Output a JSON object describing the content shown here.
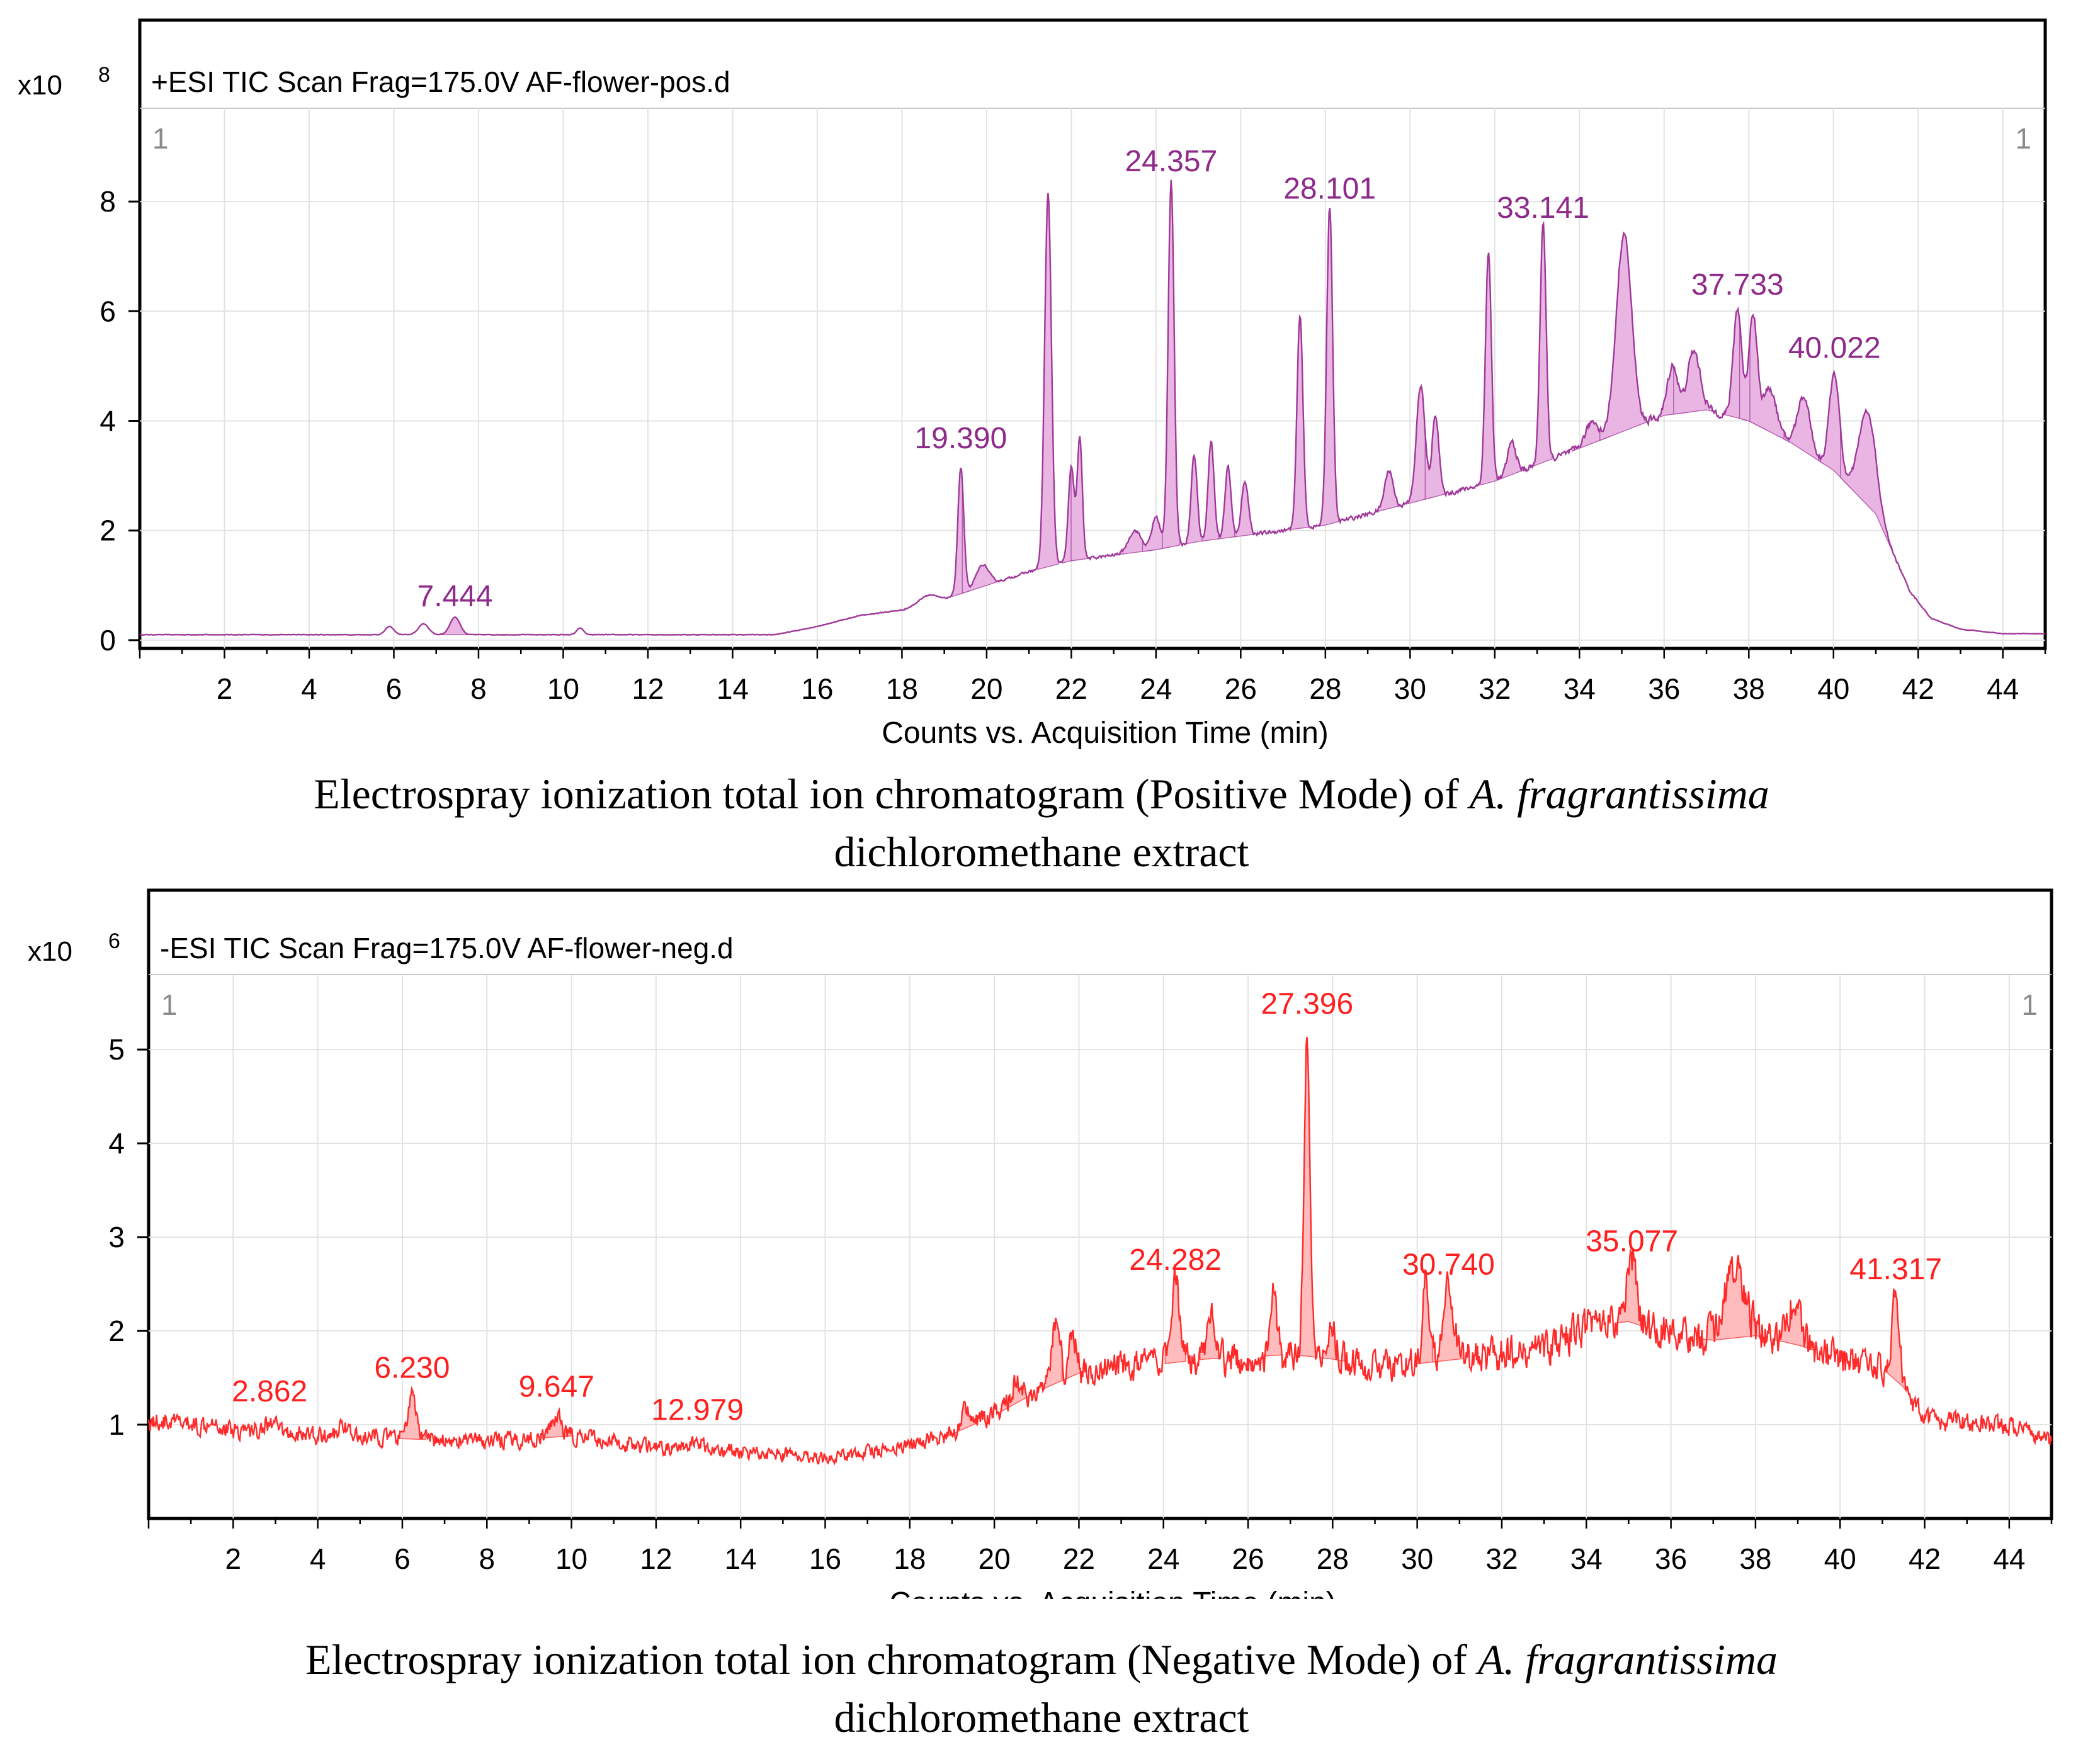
{
  "chart_data": [
    {
      "type": "line",
      "mode": "positive",
      "title": "+ESI TIC Scan Frag=175.0V AF-flower-pos.d",
      "exponent_base": "x10",
      "exponent_power": "8",
      "corner_label_left": "1",
      "corner_label_right": "1",
      "xlabel": "Counts vs. Acquisition Time (min)",
      "ylabel": "",
      "xlim": [
        0,
        45
      ],
      "ylim": [
        -0.15,
        9.7
      ],
      "x_ticks": [
        "2",
        "4",
        "6",
        "8",
        "10",
        "12",
        "14",
        "16",
        "18",
        "20",
        "22",
        "24",
        "26",
        "28",
        "30",
        "32",
        "34",
        "36",
        "38",
        "40",
        "42",
        "44"
      ],
      "y_ticks": [
        "0",
        "2",
        "4",
        "6",
        "8"
      ],
      "line_color": "#a0389a",
      "fill_color": "#e9b6e4",
      "label_color": "#8e2a8a",
      "baseline_points": [
        [
          0,
          0.1
        ],
        [
          15,
          0.1
        ],
        [
          16,
          0.25
        ],
        [
          17,
          0.45
        ],
        [
          18,
          0.55
        ],
        [
          19,
          0.75
        ],
        [
          20,
          1.0
        ],
        [
          21,
          1.25
        ],
        [
          22,
          1.45
        ],
        [
          23,
          1.55
        ],
        [
          24,
          1.65
        ],
        [
          25,
          1.8
        ],
        [
          26,
          1.9
        ],
        [
          27,
          2.0
        ],
        [
          28,
          2.1
        ],
        [
          29,
          2.3
        ],
        [
          30,
          2.5
        ],
        [
          31,
          2.7
        ],
        [
          32,
          2.9
        ],
        [
          33,
          3.2
        ],
        [
          34,
          3.5
        ],
        [
          35,
          3.8
        ],
        [
          36,
          4.1
        ],
        [
          37,
          4.2
        ],
        [
          38,
          4.0
        ],
        [
          39,
          3.6
        ],
        [
          40,
          3.1
        ],
        [
          41,
          2.3
        ],
        [
          41.8,
          0.9
        ],
        [
          42.3,
          0.4
        ],
        [
          43,
          0.2
        ],
        [
          44,
          0.12
        ],
        [
          45,
          0.12
        ]
      ],
      "peaks": [
        {
          "rt": 5.9,
          "height": 0.15,
          "width": 0.1
        },
        {
          "rt": 6.7,
          "height": 0.2,
          "width": 0.12
        },
        {
          "rt": 7.444,
          "height": 0.32,
          "width": 0.12
        },
        {
          "rt": 10.4,
          "height": 0.12,
          "width": 0.08
        },
        {
          "rt": 18.6,
          "height": 0.15,
          "width": 0.2
        },
        {
          "rt": 19.39,
          "height": 2.3,
          "width": 0.07
        },
        {
          "rt": 19.9,
          "height": 0.4,
          "width": 0.15
        },
        {
          "rt": 21.45,
          "height": 6.8,
          "width": 0.08
        },
        {
          "rt": 22.0,
          "height": 1.7,
          "width": 0.07
        },
        {
          "rt": 22.2,
          "height": 2.2,
          "width": 0.06
        },
        {
          "rt": 23.5,
          "height": 0.4,
          "width": 0.15
        },
        {
          "rt": 24.0,
          "height": 0.6,
          "width": 0.1
        },
        {
          "rt": 24.357,
          "height": 6.7,
          "width": 0.07
        },
        {
          "rt": 24.9,
          "height": 1.6,
          "width": 0.07
        },
        {
          "rt": 25.3,
          "height": 1.8,
          "width": 0.07
        },
        {
          "rt": 25.7,
          "height": 1.3,
          "width": 0.07
        },
        {
          "rt": 26.1,
          "height": 1.0,
          "width": 0.08
        },
        {
          "rt": 27.4,
          "height": 3.9,
          "width": 0.07
        },
        {
          "rt": 28.101,
          "height": 5.8,
          "width": 0.07
        },
        {
          "rt": 29.5,
          "height": 0.7,
          "width": 0.1
        },
        {
          "rt": 30.25,
          "height": 2.1,
          "width": 0.1
        },
        {
          "rt": 30.6,
          "height": 1.5,
          "width": 0.08
        },
        {
          "rt": 31.85,
          "height": 4.2,
          "width": 0.07
        },
        {
          "rt": 32.4,
          "height": 0.6,
          "width": 0.1
        },
        {
          "rt": 33.141,
          "height": 4.4,
          "width": 0.07
        },
        {
          "rt": 34.3,
          "height": 0.4,
          "width": 0.15
        },
        {
          "rt": 35.05,
          "height": 3.6,
          "width": 0.18
        },
        {
          "rt": 36.2,
          "height": 0.9,
          "width": 0.12
        },
        {
          "rt": 36.7,
          "height": 1.1,
          "width": 0.15
        },
        {
          "rt": 37.733,
          "height": 2.0,
          "width": 0.1
        },
        {
          "rt": 38.1,
          "height": 2.0,
          "width": 0.1
        },
        {
          "rt": 38.5,
          "height": 0.8,
          "width": 0.15
        },
        {
          "rt": 39.3,
          "height": 1.0,
          "width": 0.15
        },
        {
          "rt": 40.022,
          "height": 1.8,
          "width": 0.12
        },
        {
          "rt": 40.8,
          "height": 1.7,
          "width": 0.2
        }
      ],
      "peak_labels": [
        {
          "text": "7.444",
          "x": 7.444,
          "y": 0.62
        },
        {
          "text": "19.390",
          "x": 19.39,
          "y": 3.5
        },
        {
          "text": "24.357",
          "x": 24.357,
          "y": 8.55
        },
        {
          "text": "28.101",
          "x": 28.101,
          "y": 8.05
        },
        {
          "text": "33.141",
          "x": 33.141,
          "y": 7.7
        },
        {
          "text": "37.733",
          "x": 37.733,
          "y": 6.3
        },
        {
          "text": "40.022",
          "x": 40.022,
          "y": 5.15
        }
      ]
    },
    {
      "type": "line",
      "mode": "negative",
      "title": "-ESI TIC Scan Frag=175.0V AF-flower-neg.d",
      "exponent_base": "x10",
      "exponent_power": "6",
      "corner_label_left": "1",
      "corner_label_right": "1",
      "xlabel": "Counts vs. Acquisition Time (min)",
      "ylabel": "",
      "xlim": [
        0,
        45
      ],
      "ylim": [
        0.0,
        5.8
      ],
      "x_ticks": [
        "2",
        "4",
        "6",
        "8",
        "10",
        "12",
        "14",
        "16",
        "18",
        "20",
        "22",
        "24",
        "26",
        "28",
        "30",
        "32",
        "34",
        "36",
        "38",
        "40",
        "42",
        "44"
      ],
      "y_ticks": [
        "1",
        "2",
        "3",
        "4",
        "5"
      ],
      "line_color": "#ff2a2a",
      "fill_color": "#ffbcbc",
      "label_color": "#ff1f1f",
      "baseline_points": [
        [
          0,
          1.05
        ],
        [
          2,
          0.95
        ],
        [
          4,
          0.88
        ],
        [
          6,
          0.85
        ],
        [
          8,
          0.82
        ],
        [
          10,
          0.88
        ],
        [
          12,
          0.75
        ],
        [
          14,
          0.72
        ],
        [
          16,
          0.65
        ],
        [
          18,
          0.78
        ],
        [
          19,
          0.9
        ],
        [
          20,
          1.1
        ],
        [
          21,
          1.35
        ],
        [
          22,
          1.55
        ],
        [
          23,
          1.62
        ],
        [
          24,
          1.65
        ],
        [
          25,
          1.7
        ],
        [
          26,
          1.72
        ],
        [
          27,
          1.75
        ],
        [
          28,
          1.7
        ],
        [
          29,
          1.62
        ],
        [
          30,
          1.65
        ],
        [
          31,
          1.7
        ],
        [
          32,
          1.75
        ],
        [
          33,
          1.8
        ],
        [
          34,
          2.05
        ],
        [
          35,
          2.1
        ],
        [
          36,
          1.95
        ],
        [
          37,
          1.9
        ],
        [
          38,
          1.95
        ],
        [
          39,
          1.85
        ],
        [
          40,
          1.7
        ],
        [
          41,
          1.6
        ],
        [
          41.5,
          1.4
        ],
        [
          42,
          1.05
        ],
        [
          44,
          0.98
        ],
        [
          45,
          0.85
        ]
      ],
      "peaks": [
        {
          "rt": 1.5,
          "height": 0.12,
          "width": 0.1
        },
        {
          "rt": 2.862,
          "height": 0.1,
          "width": 0.15
        },
        {
          "rt": 4.6,
          "height": 0.15,
          "width": 0.1
        },
        {
          "rt": 6.23,
          "height": 0.45,
          "width": 0.1
        },
        {
          "rt": 9.647,
          "height": 0.22,
          "width": 0.12
        },
        {
          "rt": 12.979,
          "height": 0.08,
          "width": 0.15
        },
        {
          "rt": 19.3,
          "height": 0.2,
          "width": 0.1
        },
        {
          "rt": 20.5,
          "height": 0.25,
          "width": 0.12
        },
        {
          "rt": 21.45,
          "height": 0.7,
          "width": 0.1
        },
        {
          "rt": 21.85,
          "height": 0.45,
          "width": 0.08
        },
        {
          "rt": 24.282,
          "height": 0.9,
          "width": 0.08
        },
        {
          "rt": 25.1,
          "height": 0.5,
          "width": 0.08
        },
        {
          "rt": 26.6,
          "height": 0.75,
          "width": 0.07
        },
        {
          "rt": 27.396,
          "height": 3.5,
          "width": 0.07
        },
        {
          "rt": 28.0,
          "height": 0.3,
          "width": 0.1
        },
        {
          "rt": 30.2,
          "height": 0.85,
          "width": 0.08
        },
        {
          "rt": 30.74,
          "height": 0.85,
          "width": 0.12
        },
        {
          "rt": 35.077,
          "height": 0.7,
          "width": 0.12
        },
        {
          "rt": 37.5,
          "height": 0.72,
          "width": 0.25
        },
        {
          "rt": 38.9,
          "height": 0.4,
          "width": 0.15
        },
        {
          "rt": 41.317,
          "height": 0.95,
          "width": 0.08
        }
      ],
      "peak_labels": [
        {
          "text": "2.862",
          "x": 2.862,
          "y": 1.25
        },
        {
          "text": "6.230",
          "x": 6.23,
          "y": 1.5
        },
        {
          "text": "9.647",
          "x": 9.647,
          "y": 1.3
        },
        {
          "text": "12.979",
          "x": 12.979,
          "y": 1.05
        },
        {
          "text": "24.282",
          "x": 24.282,
          "y": 2.65
        },
        {
          "text": "27.396",
          "x": 27.396,
          "y": 5.38
        },
        {
          "text": "30.740",
          "x": 30.74,
          "y": 2.6
        },
        {
          "text": "35.077",
          "x": 35.077,
          "y": 2.85
        },
        {
          "text": "41.317",
          "x": 41.317,
          "y": 2.55
        }
      ]
    }
  ],
  "captions": {
    "positive": {
      "line1_prefix": "Electrospray ionization total ion chromatogram (Positive Mode) of ",
      "line1_species": "A. fragrantissima",
      "line2": "dichloromethane extract"
    },
    "negative": {
      "line1_prefix": "Electrospray ionization total ion chromatogram (Negative Mode) of ",
      "line1_species": "A. fragrantissima",
      "line2": "dichloromethane extract"
    }
  }
}
